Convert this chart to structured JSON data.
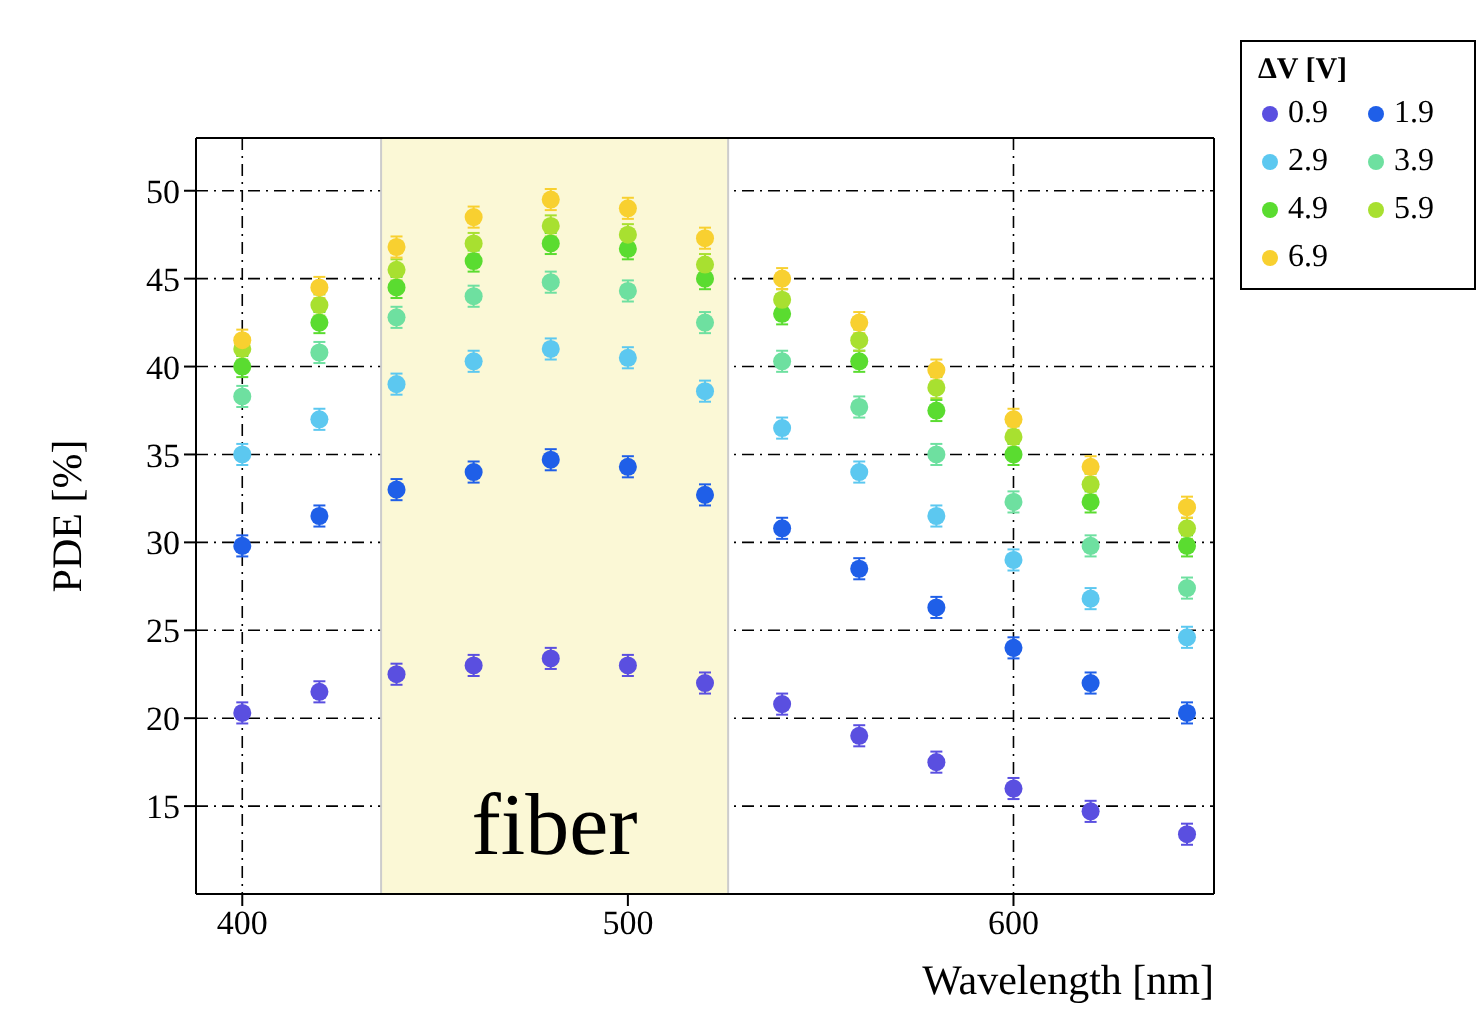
{
  "chart_data": {
    "type": "scatter",
    "xlabel": "Wavelength [nm]",
    "ylabel": "PDE [%]",
    "legend_title": "ΔV [V]",
    "legend": "top right",
    "grid": true,
    "marker": "circle",
    "x": [
      400,
      420,
      440,
      460,
      480,
      500,
      520,
      540,
      560,
      580,
      600,
      620,
      645
    ],
    "xlim": [
      388,
      652
    ],
    "xticks": [
      400,
      500,
      600
    ],
    "ylim": [
      10,
      53
    ],
    "yticks": [
      15,
      20,
      25,
      30,
      35,
      40,
      45,
      50
    ],
    "bands": [
      {
        "axis": "x",
        "from": 436,
        "to": 526,
        "label": "fiber",
        "color": "#fbf8d6"
      }
    ],
    "series": [
      {
        "name": "0.9",
        "color": "#5a4fe0",
        "values": [
          20.3,
          21.5,
          22.5,
          23,
          23.4,
          23,
          22,
          20.8,
          19,
          17.5,
          16,
          14.7,
          13.4
        ],
        "errors": [
          0.6,
          0.6,
          0.6,
          0.6,
          0.6,
          0.6,
          0.6,
          0.6,
          0.6,
          0.6,
          0.6,
          0.6,
          0.6
        ]
      },
      {
        "name": "1.9",
        "color": "#1f5fe8",
        "values": [
          29.8,
          31.5,
          33,
          34,
          34.7,
          34.3,
          32.7,
          30.8,
          28.5,
          26.3,
          24,
          22,
          20.3
        ],
        "errors": [
          0.6,
          0.6,
          0.6,
          0.6,
          0.6,
          0.6,
          0.6,
          0.6,
          0.6,
          0.6,
          0.6,
          0.6,
          0.6
        ]
      },
      {
        "name": "2.9",
        "color": "#5cc8f0",
        "values": [
          35,
          37,
          39,
          40.3,
          41,
          40.5,
          38.6,
          36.5,
          34,
          31.5,
          29,
          26.8,
          24.6
        ],
        "errors": [
          0.6,
          0.6,
          0.6,
          0.6,
          0.6,
          0.6,
          0.6,
          0.6,
          0.6,
          0.6,
          0.6,
          0.6,
          0.6
        ]
      },
      {
        "name": "3.9",
        "color": "#6ee0a0",
        "values": [
          38.3,
          40.8,
          42.8,
          44,
          44.8,
          44.3,
          42.5,
          40.3,
          37.7,
          35,
          32.3,
          29.8,
          27.4
        ],
        "errors": [
          0.6,
          0.6,
          0.6,
          0.6,
          0.6,
          0.6,
          0.6,
          0.6,
          0.6,
          0.6,
          0.6,
          0.6,
          0.6
        ]
      },
      {
        "name": "4.9",
        "color": "#5adc30",
        "values": [
          40,
          42.5,
          44.5,
          46,
          47,
          46.7,
          45,
          43,
          40.3,
          37.5,
          35,
          32.3,
          29.8
        ],
        "errors": [
          0.6,
          0.6,
          0.6,
          0.6,
          0.6,
          0.6,
          0.6,
          0.6,
          0.6,
          0.6,
          0.6,
          0.6,
          0.6
        ]
      },
      {
        "name": "5.9",
        "color": "#a8e030",
        "values": [
          41,
          43.5,
          45.5,
          47,
          48,
          47.5,
          45.8,
          43.8,
          41.5,
          38.8,
          36,
          33.3,
          30.8
        ],
        "errors": [
          0.6,
          0.6,
          0.6,
          0.6,
          0.6,
          0.6,
          0.6,
          0.6,
          0.6,
          0.6,
          0.6,
          0.6,
          0.6
        ]
      },
      {
        "name": "6.9",
        "color": "#f8d030",
        "values": [
          41.5,
          44.5,
          46.8,
          48.5,
          49.5,
          49,
          47.3,
          45,
          42.5,
          39.8,
          37,
          34.3,
          32
        ],
        "errors": [
          0.6,
          0.6,
          0.6,
          0.6,
          0.6,
          0.6,
          0.6,
          0.6,
          0.6,
          0.6,
          0.6,
          0.6,
          0.6
        ]
      }
    ]
  }
}
